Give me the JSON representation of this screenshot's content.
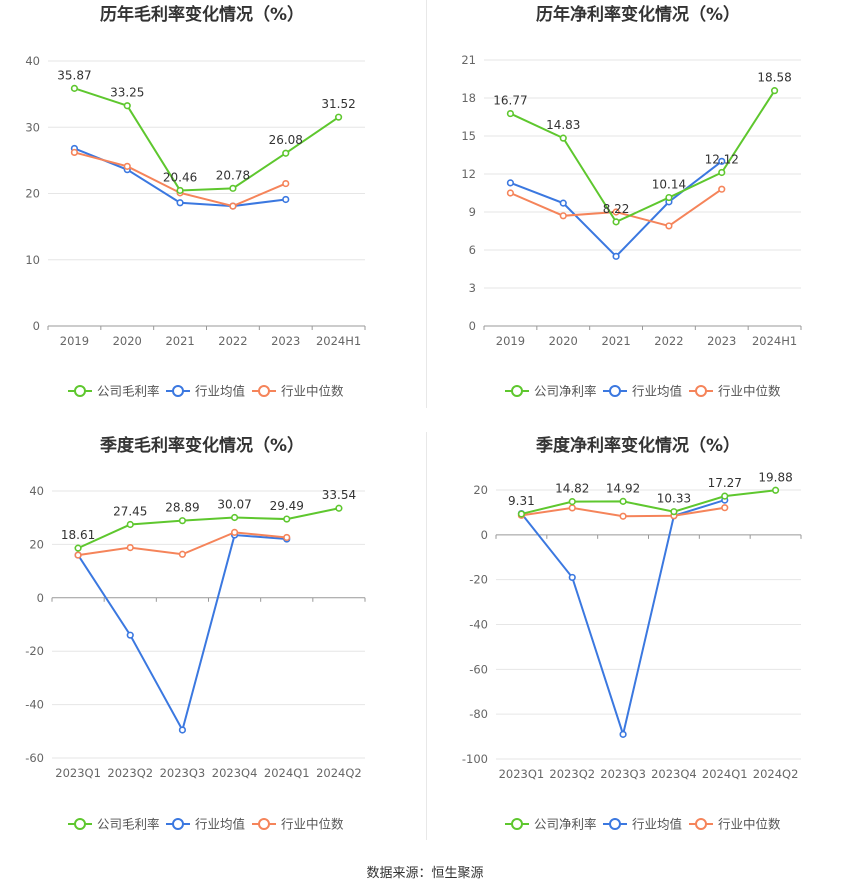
{
  "source_label": "数据来源：恒生聚源",
  "colors": {
    "company": "#5ec72e",
    "industry_avg": "#3b78e0",
    "industry_median": "#f5845a",
    "grid": "#e6e6e6",
    "axis": "#666666"
  },
  "chart_data": [
    {
      "type": "line",
      "title": "历年毛利率变化情况（%）",
      "categories": [
        "2019",
        "2020",
        "2021",
        "2022",
        "2023",
        "2024H1"
      ],
      "yticks": [
        0,
        10,
        20,
        30,
        40
      ],
      "ylim": [
        0,
        40
      ],
      "legend_position": "bottom",
      "series": [
        {
          "name": "公司毛利率",
          "color": "#5ec72e",
          "labels": true,
          "values": [
            35.87,
            33.25,
            20.46,
            20.78,
            26.08,
            31.52
          ]
        },
        {
          "name": "行业均值",
          "color": "#3b78e0",
          "labels": false,
          "values": [
            26.8,
            23.6,
            18.6,
            18.1,
            19.1,
            null
          ]
        },
        {
          "name": "行业中位数",
          "color": "#f5845a",
          "labels": false,
          "values": [
            26.2,
            24.1,
            20.1,
            18.1,
            21.5,
            null
          ]
        }
      ]
    },
    {
      "type": "line",
      "title": "历年净利率变化情况（%）",
      "categories": [
        "2019",
        "2020",
        "2021",
        "2022",
        "2023",
        "2024H1"
      ],
      "yticks": [
        0,
        3,
        6,
        9,
        12,
        15,
        18,
        21
      ],
      "ylim": [
        0,
        21
      ],
      "legend_position": "bottom",
      "series": [
        {
          "name": "公司净利率",
          "color": "#5ec72e",
          "labels": true,
          "values": [
            16.77,
            14.83,
            8.22,
            10.14,
            12.12,
            18.58
          ]
        },
        {
          "name": "行业均值",
          "color": "#3b78e0",
          "labels": false,
          "values": [
            11.3,
            9.7,
            5.5,
            9.8,
            13.0,
            null
          ]
        },
        {
          "name": "行业中位数",
          "color": "#f5845a",
          "labels": false,
          "values": [
            10.5,
            8.7,
            9.0,
            7.9,
            10.8,
            null
          ]
        }
      ]
    },
    {
      "type": "line",
      "title": "季度毛利率变化情况（%）",
      "categories": [
        "2023Q1",
        "2023Q2",
        "2023Q3",
        "2023Q4",
        "2024Q1",
        "2024Q2"
      ],
      "yticks": [
        -60,
        -40,
        -20,
        0,
        20,
        40
      ],
      "ylim": [
        -60,
        40
      ],
      "legend_position": "bottom",
      "series": [
        {
          "name": "公司毛利率",
          "color": "#5ec72e",
          "labels": true,
          "values": [
            18.61,
            27.45,
            28.89,
            30.07,
            29.49,
            33.54
          ]
        },
        {
          "name": "行业均值",
          "color": "#3b78e0",
          "labels": false,
          "values": [
            16.0,
            -14.0,
            -49.5,
            23.5,
            22.0,
            null
          ]
        },
        {
          "name": "行业中位数",
          "color": "#f5845a",
          "labels": false,
          "values": [
            16.0,
            18.8,
            16.3,
            24.5,
            22.6,
            null
          ]
        }
      ]
    },
    {
      "type": "line",
      "title": "季度净利率变化情况（%）",
      "categories": [
        "2023Q1",
        "2023Q2",
        "2023Q3",
        "2023Q4",
        "2024Q1",
        "2024Q2"
      ],
      "yticks": [
        -100,
        -80,
        -60,
        -40,
        -20,
        0,
        20
      ],
      "ylim": [
        -100,
        20
      ],
      "legend_position": "bottom",
      "series": [
        {
          "name": "公司净利率",
          "color": "#5ec72e",
          "labels": true,
          "values": [
            9.31,
            14.82,
            14.92,
            10.33,
            17.27,
            19.88
          ]
        },
        {
          "name": "行业均值",
          "color": "#3b78e0",
          "labels": false,
          "values": [
            9.5,
            -19.0,
            -89.0,
            8.5,
            15.5,
            null
          ]
        },
        {
          "name": "行业中位数",
          "color": "#f5845a",
          "labels": false,
          "values": [
            8.7,
            12.0,
            8.3,
            8.5,
            12.1,
            null
          ]
        }
      ]
    }
  ]
}
